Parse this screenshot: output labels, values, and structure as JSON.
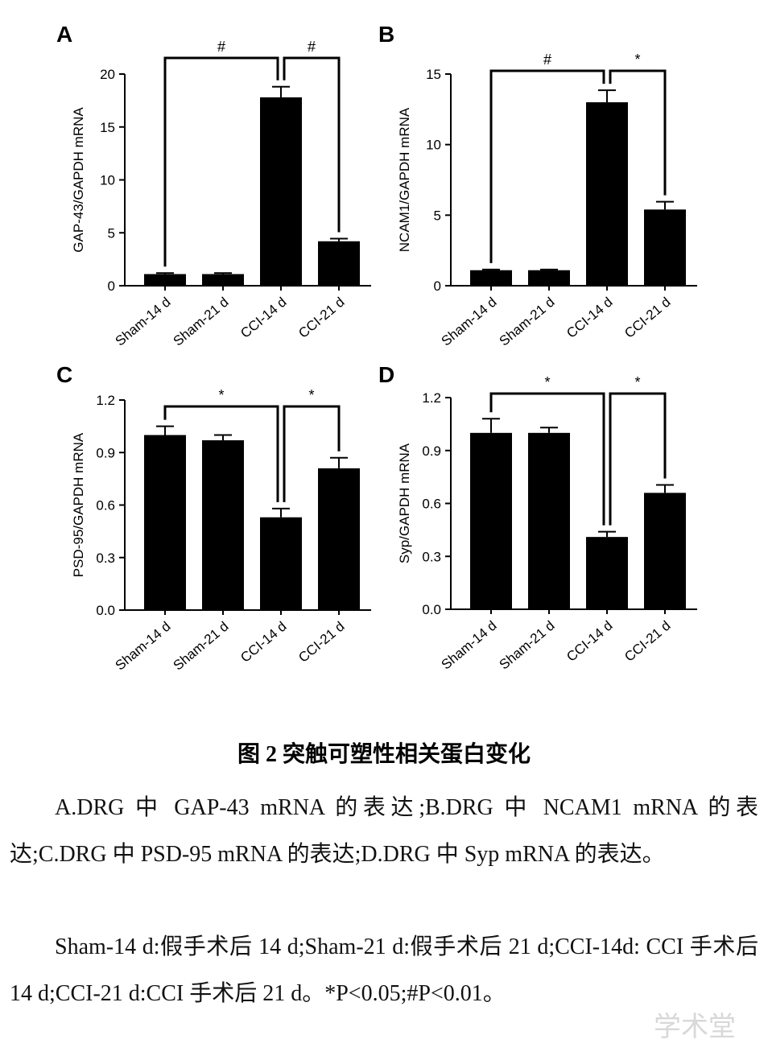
{
  "chart_data": [
    {
      "type": "bar",
      "panel": "A",
      "ylabel": "GAP-43/GAPDH mRNA",
      "color": "#000000",
      "categories": [
        "Sham-14 d",
        "Sham-21 d",
        "CCI-14 d",
        "CCI-21 d"
      ],
      "values": [
        1.1,
        1.1,
        17.8,
        4.2
      ],
      "errors": [
        0.1,
        0.1,
        1.0,
        0.25
      ],
      "ylim": [
        0,
        20
      ],
      "yticks": [
        0,
        5,
        10,
        15,
        20
      ],
      "annotations": [
        {
          "text": "#",
          "between": [
            0,
            2
          ]
        },
        {
          "text": "#",
          "between": [
            2,
            3
          ]
        }
      ]
    },
    {
      "type": "bar",
      "panel": "B",
      "ylabel": "NCAM1/GAPDH mRNA",
      "color": "#000000",
      "categories": [
        "Sham-14 d",
        "Sham-21 d",
        "CCI-14 d",
        "CCI-21 d"
      ],
      "values": [
        1.1,
        1.1,
        13.0,
        5.4
      ],
      "errors": [
        0.05,
        0.05,
        0.85,
        0.55
      ],
      "ylim": [
        0,
        15
      ],
      "yticks": [
        0,
        5,
        10,
        15
      ],
      "annotations": [
        {
          "text": "#",
          "between": [
            0,
            2
          ]
        },
        {
          "text": "*",
          "between": [
            2,
            3
          ]
        }
      ]
    },
    {
      "type": "bar",
      "panel": "C",
      "ylabel": "PSD-95/GAPDH mRNA",
      "color": "#000000",
      "categories": [
        "Sham-14 d",
        "Sham-21 d",
        "CCI-14 d",
        "CCI-21 d"
      ],
      "values": [
        1.0,
        0.97,
        0.53,
        0.81
      ],
      "errors": [
        0.05,
        0.03,
        0.05,
        0.06
      ],
      "ylim": [
        0,
        1.2
      ],
      "yticks": [
        {
          "value": 0,
          "label": "0.0"
        },
        {
          "value": 0.3,
          "label": "0.3"
        },
        {
          "value": 0.6,
          "label": "0.6"
        },
        {
          "value": 0.9,
          "label": "0.9"
        },
        {
          "value": 1.2,
          "label": "1.2"
        }
      ],
      "annotations": [
        {
          "text": "*",
          "between": [
            0,
            2
          ]
        },
        {
          "text": "*",
          "between": [
            2,
            3
          ]
        }
      ]
    },
    {
      "type": "bar",
      "panel": "D",
      "ylabel": "Syp/GAPDH mRNA",
      "color": "#000000",
      "categories": [
        "Sham-14 d",
        "Sham-21 d",
        "CCI-14 d",
        "CCI-21 d"
      ],
      "values": [
        1.0,
        1.0,
        0.41,
        0.66
      ],
      "errors": [
        0.08,
        0.03,
        0.03,
        0.045
      ],
      "ylim": [
        0,
        1.2
      ],
      "yticks": [
        {
          "value": 0,
          "label": "0.0"
        },
        {
          "value": 0.3,
          "label": "0.3"
        },
        {
          "value": 0.6,
          "label": "0.6"
        },
        {
          "value": 0.9,
          "label": "0.9"
        },
        {
          "value": 1.2,
          "label": "1.2"
        }
      ],
      "annotations": [
        {
          "text": "*",
          "between": [
            0,
            2
          ]
        },
        {
          "text": "*",
          "between": [
            2,
            3
          ]
        }
      ]
    }
  ],
  "caption": {
    "title": "图 2  突触可塑性相关蛋白变化",
    "paragraphs": [
      "A.DRG 中 GAP-43 mRNA 的表达;B.DRG 中 NCAM1 mRNA 的表达;C.DRG 中 PSD-95 mRNA 的表达;D.DRG 中 Syp mRNA 的表达。",
      "Sham-14 d:假手术后 14 d;Sham-21 d:假手术后 21 d;CCI-14d: CCI 手术后 14 d;CCI-21 d:CCI 手术后 21 d。*P<0.05;#P<0.01。"
    ]
  },
  "watermark": "学术堂"
}
